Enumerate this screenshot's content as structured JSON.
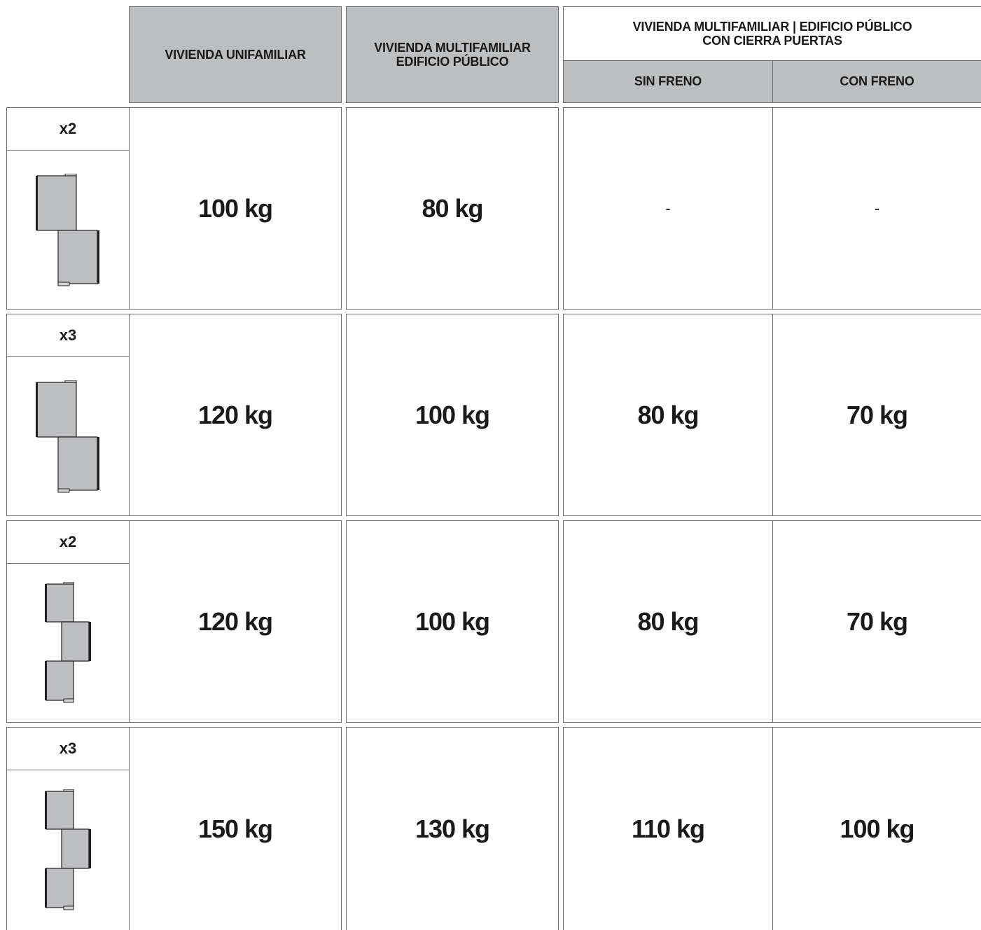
{
  "header": {
    "col1": "VIVIENDA UNIFAMILIAR",
    "col2_line1": "VIVIENDA MULTIFAMILIAR",
    "col2_line2": "EDIFICIO PÚBLICO",
    "group_line1": "VIVIENDA MULTIFAMILIAR | EDIFICIO PÚBLICO",
    "group_line2": "CON CIERRA PUERTAS",
    "sub1": "SIN FRENO",
    "sub2": "CON FRENO"
  },
  "rows": [
    {
      "count": "x2",
      "icon": "two-leaf-hinge-icon",
      "unifamiliar": "100 kg",
      "multifamiliar": "80 kg",
      "sin_freno": "-",
      "con_freno": "-"
    },
    {
      "count": "x3",
      "icon": "two-leaf-hinge-icon",
      "unifamiliar": "120 kg",
      "multifamiliar": "100 kg",
      "sin_freno": "80 kg",
      "con_freno": "70 kg"
    },
    {
      "count": "x2",
      "icon": "three-leaf-hinge-icon",
      "unifamiliar": "120 kg",
      "multifamiliar": "100 kg",
      "sin_freno": "80 kg",
      "con_freno": "70 kg"
    },
    {
      "count": "x3",
      "icon": "three-leaf-hinge-icon",
      "unifamiliar": "150 kg",
      "multifamiliar": "130 kg",
      "sin_freno": "110 kg",
      "con_freno": "100 kg"
    }
  ],
  "colors": {
    "header_fill": "#bcbec0",
    "border": "#6d6e71",
    "hinge_fill": "#bcbec0",
    "hinge_edge": "#231f20"
  }
}
